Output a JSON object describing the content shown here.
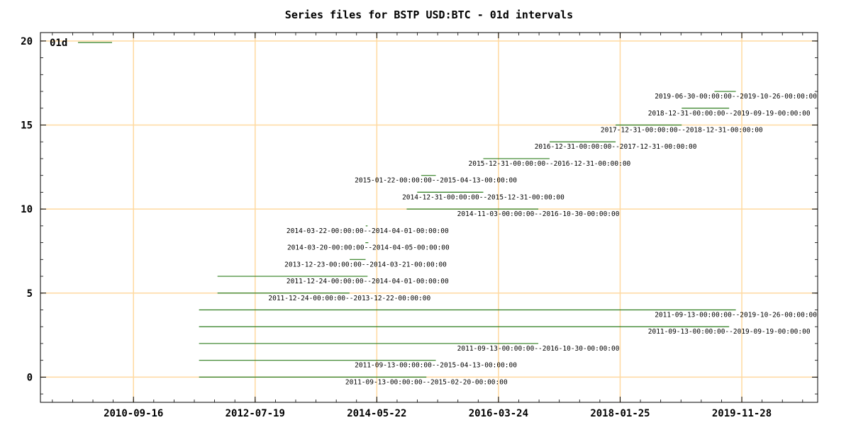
{
  "chart_data": {
    "type": "line",
    "title": "Series files for BSTP USD:BTC - 01d intervals",
    "xlabel": "",
    "ylabel": "",
    "x_axis": {
      "scale": "date",
      "range": [
        "2009-04-20",
        "2021-01-20"
      ],
      "tick_labels": [
        "2010-09-16",
        "2012-07-19",
        "2014-05-22",
        "2016-03-24",
        "2018-01-25",
        "2019-11-28"
      ]
    },
    "y_axis": {
      "range": [
        -1.5,
        20.5
      ],
      "tick_labels": [
        "0",
        "5",
        "10",
        "15",
        "20"
      ]
    },
    "grid": true,
    "grid_color": "#ffd9a0",
    "legend": {
      "placement": "top-left",
      "entries": [
        {
          "name": "01d",
          "color": "#2e7d1e"
        }
      ]
    },
    "series": [
      {
        "name": "01d",
        "color": "#2e7d1e",
        "intervals": [
          {
            "y": 0,
            "start": "2011-09-13",
            "end": "2015-02-20",
            "label": "2011-09-13-00:00:00--2015-02-20-00:00:00"
          },
          {
            "y": 1,
            "start": "2011-09-13",
            "end": "2015-04-13",
            "label": "2011-09-13-00:00:00--2015-04-13-00:00:00"
          },
          {
            "y": 2,
            "start": "2011-09-13",
            "end": "2016-10-30",
            "label": "2011-09-13-00:00:00--2016-10-30-00:00:00"
          },
          {
            "y": 3,
            "start": "2011-09-13",
            "end": "2019-09-19",
            "label": "2011-09-13-00:00:00--2019-09-19-00:00:00"
          },
          {
            "y": 4,
            "start": "2011-09-13",
            "end": "2019-10-26",
            "label": "2011-09-13-00:00:00--2019-10-26-00:00:00"
          },
          {
            "y": 5,
            "start": "2011-12-24",
            "end": "2013-12-22",
            "label": "2011-12-24-00:00:00--2013-12-22-00:00:00"
          },
          {
            "y": 6,
            "start": "2011-12-24",
            "end": "2014-04-01",
            "label": "2011-12-24-00:00:00--2014-04-01-00:00:00"
          },
          {
            "y": 7,
            "start": "2013-12-23",
            "end": "2014-03-21",
            "label": "2013-12-23-00:00:00--2014-03-21-00:00:00"
          },
          {
            "y": 8,
            "start": "2014-03-20",
            "end": "2014-04-05",
            "label": "2014-03-20-00:00:00--2014-04-05-00:00:00"
          },
          {
            "y": 9,
            "start": "2014-03-22",
            "end": "2014-04-01",
            "label": "2014-03-22-00:00:00--2014-04-01-00:00:00"
          },
          {
            "y": 10,
            "start": "2014-11-03",
            "end": "2016-10-30",
            "label": "2014-11-03-00:00:00--2016-10-30-00:00:00"
          },
          {
            "y": 11,
            "start": "2014-12-31",
            "end": "2015-12-31",
            "label": "2014-12-31-00:00:00--2015-12-31-00:00:00"
          },
          {
            "y": 12,
            "start": "2015-01-22",
            "end": "2015-04-13",
            "label": "2015-01-22-00:00:00--2015-04-13-00:00:00"
          },
          {
            "y": 13,
            "start": "2015-12-31",
            "end": "2016-12-31",
            "label": "2015-12-31-00:00:00--2016-12-31-00:00:00"
          },
          {
            "y": 14,
            "start": "2016-12-31",
            "end": "2017-12-31",
            "label": "2016-12-31-00:00:00--2017-12-31-00:00:00"
          },
          {
            "y": 15,
            "start": "2017-12-31",
            "end": "2018-12-31",
            "label": "2017-12-31-00:00:00--2018-12-31-00:00:00"
          },
          {
            "y": 16,
            "start": "2018-12-31",
            "end": "2019-09-19",
            "label": "2018-12-31-00:00:00--2019-09-19-00:00:00"
          },
          {
            "y": 17,
            "start": "2019-06-30",
            "end": "2019-10-26",
            "label": "2019-06-30-00:00:00--2019-10-26-00:00:00"
          }
        ]
      }
    ]
  }
}
